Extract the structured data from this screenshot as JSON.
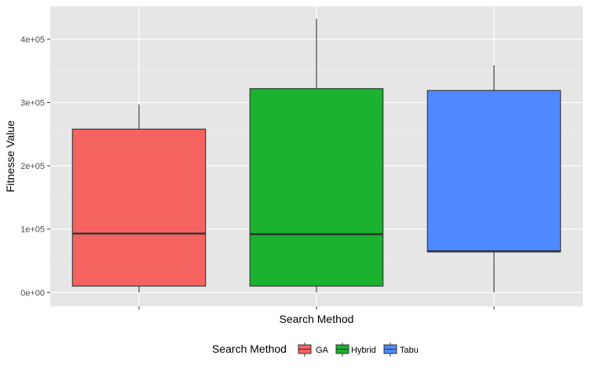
{
  "chart_data": {
    "type": "boxplot",
    "title": "",
    "xlabel": "Search Method",
    "ylabel": "Fitnesse Value",
    "ylim": [
      -22000,
      452000
    ],
    "yticks": [
      0,
      100000,
      200000,
      300000,
      400000
    ],
    "ytick_labels": [
      "0e+00",
      "1e+05",
      "2e+05",
      "3e+05",
      "4e+05"
    ],
    "categories": [
      "GA",
      "Hybrid",
      "Tabu"
    ],
    "boxes": [
      {
        "name": "GA",
        "min": 0,
        "q1": 10000,
        "median": 93000,
        "q3": 258000,
        "max": 297000,
        "color": "#F46360"
      },
      {
        "name": "Hybrid",
        "min": 0,
        "q1": 10000,
        "median": 92000,
        "q3": 322000,
        "max": 432000,
        "color": "#1AB22F"
      },
      {
        "name": "Tabu",
        "min": 0,
        "q1": 64000,
        "median": 65000,
        "q3": 319000,
        "max": 359000,
        "color": "#4F89FF"
      }
    ],
    "grid": true,
    "panel_background": "#E6E6E6",
    "legend": {
      "position": "bottom",
      "title": "Search Method",
      "entries": [
        "GA",
        "Hybrid",
        "Tabu"
      ]
    }
  }
}
